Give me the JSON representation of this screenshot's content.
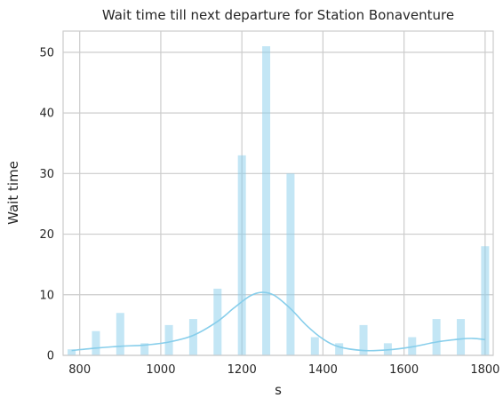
{
  "chart_data": {
    "type": "bar",
    "title": "Wait time till next departure for Station Bonaventure",
    "xlabel": "s",
    "ylabel": "Wait time",
    "xlim": [
      759,
      1820
    ],
    "ylim": [
      0,
      53.5
    ],
    "grid": true,
    "x_ticks": [
      800,
      1000,
      1200,
      1400,
      1600,
      1800
    ],
    "y_ticks": [
      0,
      10,
      20,
      30,
      40,
      50
    ],
    "bar_color": "#87ceeb",
    "kde_color": "#87ceeb",
    "bins": [
      {
        "x": 780,
        "count": 1
      },
      {
        "x": 840,
        "count": 4
      },
      {
        "x": 900,
        "count": 7
      },
      {
        "x": 960,
        "count": 2
      },
      {
        "x": 1020,
        "count": 5
      },
      {
        "x": 1080,
        "count": 6
      },
      {
        "x": 1140,
        "count": 11
      },
      {
        "x": 1200,
        "count": 33
      },
      {
        "x": 1260,
        "count": 51
      },
      {
        "x": 1320,
        "count": 30
      },
      {
        "x": 1380,
        "count": 3
      },
      {
        "x": 1440,
        "count": 2
      },
      {
        "x": 1500,
        "count": 5
      },
      {
        "x": 1560,
        "count": 2
      },
      {
        "x": 1620,
        "count": 3
      },
      {
        "x": 1680,
        "count": 6
      },
      {
        "x": 1740,
        "count": 6
      },
      {
        "x": 1800,
        "count": 18
      }
    ],
    "kde": {
      "x": [
        780,
        840,
        900,
        960,
        1020,
        1080,
        1140,
        1180,
        1220,
        1250,
        1280,
        1320,
        1360,
        1400,
        1440,
        1500,
        1560,
        1620,
        1680,
        1740,
        1770,
        1800
      ],
      "y": [
        0.8,
        1.2,
        1.5,
        1.7,
        2.2,
        3.3,
        5.6,
        7.8,
        9.8,
        10.4,
        9.9,
        7.7,
        4.9,
        2.7,
        1.4,
        0.8,
        0.9,
        1.4,
        2.2,
        2.7,
        2.8,
        2.6
      ]
    }
  }
}
